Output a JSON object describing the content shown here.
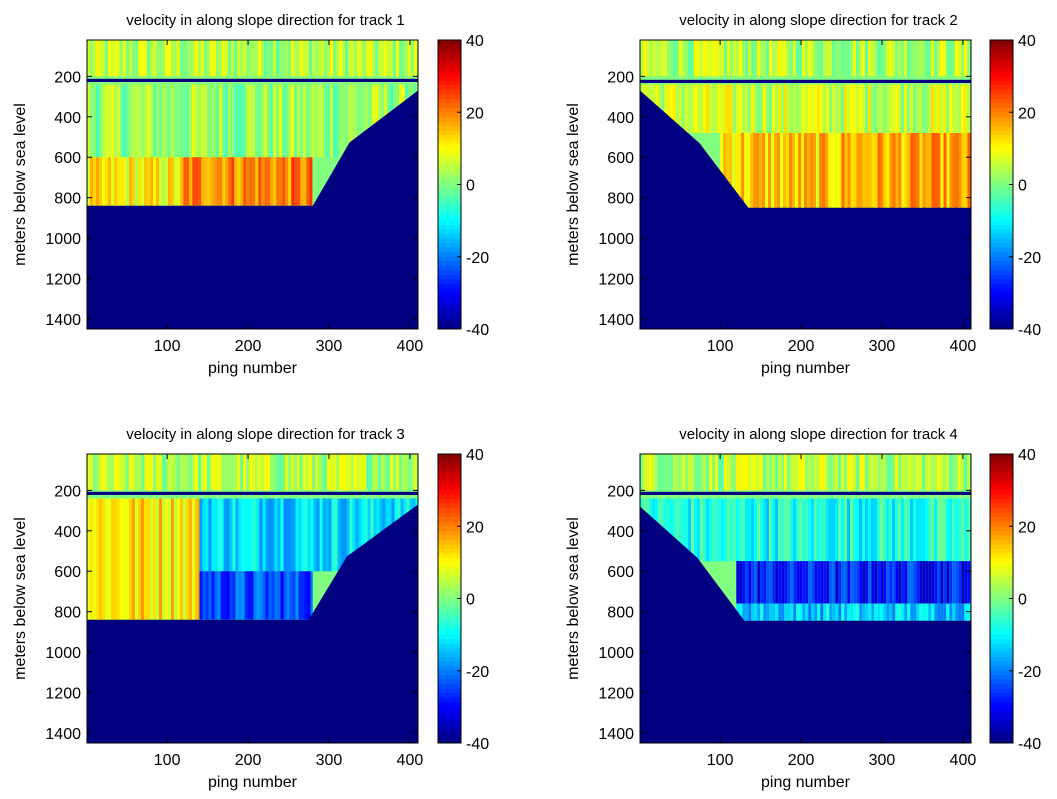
{
  "chart_data": [
    {
      "type": "heatmap",
      "title": "velocity in along slope direction for track 1",
      "xlabel": "ping number",
      "ylabel": "meters below sea level",
      "xlim": [
        1,
        410
      ],
      "ylim": [
        1450,
        20
      ],
      "y_reversed": true,
      "x_ticks": [
        "100",
        "200",
        "300",
        "400"
      ],
      "y_ticks": [
        "200",
        "400",
        "600",
        "800",
        "1000",
        "1200",
        "1400"
      ],
      "colorbar": {
        "colormap": "jet",
        "clim": [
          -40,
          40
        ],
        "ticks": [
          "40",
          "20",
          "0",
          "-20",
          "-40"
        ]
      },
      "bad_band_depth_m": 220,
      "seafloor": {
        "flat_depth_m": 840,
        "side": "right",
        "start_ping": 280,
        "end_ping": 410,
        "end_depth_m": 270
      },
      "velocity_regions": [
        {
          "pings": [
            1,
            410
          ],
          "depth_m": [
            20,
            200
          ],
          "level": 4
        },
        {
          "pings": [
            1,
            410
          ],
          "depth_m": [
            240,
            600
          ],
          "level": 2
        },
        {
          "pings": [
            1,
            120
          ],
          "depth_m": [
            600,
            840
          ],
          "level": 10
        },
        {
          "pings": [
            120,
            280
          ],
          "depth_m": [
            600,
            840
          ],
          "level": 20
        }
      ]
    },
    {
      "type": "heatmap",
      "title": "velocity in along slope direction for track 2",
      "xlabel": "ping number",
      "ylabel": "meters below sea level",
      "xlim": [
        1,
        410
      ],
      "ylim": [
        1450,
        20
      ],
      "y_reversed": true,
      "x_ticks": [
        "100",
        "200",
        "300",
        "400"
      ],
      "y_ticks": [
        "200",
        "400",
        "600",
        "800",
        "1000",
        "1200",
        "1400"
      ],
      "colorbar": {
        "colormap": "jet",
        "clim": [
          -40,
          40
        ],
        "ticks": [
          "40",
          "20",
          "0",
          "-20",
          "-40"
        ]
      },
      "bad_band_depth_m": 225,
      "seafloor": {
        "flat_depth_m": 850,
        "side": "left",
        "start_ping": 1,
        "end_ping": 135,
        "end_depth_m": 270
      },
      "velocity_regions": [
        {
          "pings": [
            1,
            410
          ],
          "depth_m": [
            20,
            200
          ],
          "level": 4
        },
        {
          "pings": [
            1,
            410
          ],
          "depth_m": [
            240,
            480
          ],
          "level": 6
        },
        {
          "pings": [
            100,
            250
          ],
          "depth_m": [
            480,
            850
          ],
          "level": 14
        },
        {
          "pings": [
            250,
            410
          ],
          "depth_m": [
            480,
            850
          ],
          "level": 16
        }
      ]
    },
    {
      "type": "heatmap",
      "title": "velocity in along slope direction for track 3",
      "xlabel": "ping number",
      "ylabel": "meters below sea level",
      "xlim": [
        1,
        410
      ],
      "ylim": [
        1450,
        20
      ],
      "y_reversed": true,
      "x_ticks": [
        "100",
        "200",
        "300",
        "400"
      ],
      "y_ticks": [
        "200",
        "400",
        "600",
        "800",
        "1000",
        "1200",
        "1400"
      ],
      "colorbar": {
        "colormap": "jet",
        "clim": [
          -40,
          40
        ],
        "ticks": [
          "40",
          "20",
          "0",
          "-20",
          "-40"
        ]
      },
      "bad_band_depth_m": 215,
      "seafloor": {
        "flat_depth_m": 840,
        "side": "right",
        "start_ping": 275,
        "end_ping": 410,
        "end_depth_m": 270
      },
      "velocity_regions": [
        {
          "pings": [
            1,
            410
          ],
          "depth_m": [
            20,
            200
          ],
          "level": 4
        },
        {
          "pings": [
            1,
            140
          ],
          "depth_m": [
            240,
            840
          ],
          "level": 12
        },
        {
          "pings": [
            140,
            410
          ],
          "depth_m": [
            240,
            600
          ],
          "level": -12
        },
        {
          "pings": [
            140,
            280
          ],
          "depth_m": [
            600,
            840
          ],
          "level": -24
        }
      ]
    },
    {
      "type": "heatmap",
      "title": "velocity in along slope direction for track 4",
      "xlabel": "ping number",
      "ylabel": "meters below sea level",
      "xlim": [
        1,
        410
      ],
      "ylim": [
        1450,
        20
      ],
      "y_reversed": true,
      "x_ticks": [
        "100",
        "200",
        "300",
        "400"
      ],
      "y_ticks": [
        "200",
        "400",
        "600",
        "800",
        "1000",
        "1200",
        "1400"
      ],
      "colorbar": {
        "colormap": "jet",
        "clim": [
          -40,
          40
        ],
        "ticks": [
          "40",
          "20",
          "0",
          "-20",
          "-40"
        ]
      },
      "bad_band_depth_m": 215,
      "seafloor": {
        "flat_depth_m": 845,
        "side": "left",
        "start_ping": 1,
        "end_ping": 130,
        "end_depth_m": 280
      },
      "velocity_regions": [
        {
          "pings": [
            1,
            410
          ],
          "depth_m": [
            20,
            200
          ],
          "level": 4
        },
        {
          "pings": [
            1,
            410
          ],
          "depth_m": [
            240,
            550
          ],
          "level": -8
        },
        {
          "pings": [
            120,
            410
          ],
          "depth_m": [
            550,
            760
          ],
          "level": -28
        },
        {
          "pings": [
            120,
            410
          ],
          "depth_m": [
            760,
            845
          ],
          "level": -14
        }
      ]
    }
  ]
}
